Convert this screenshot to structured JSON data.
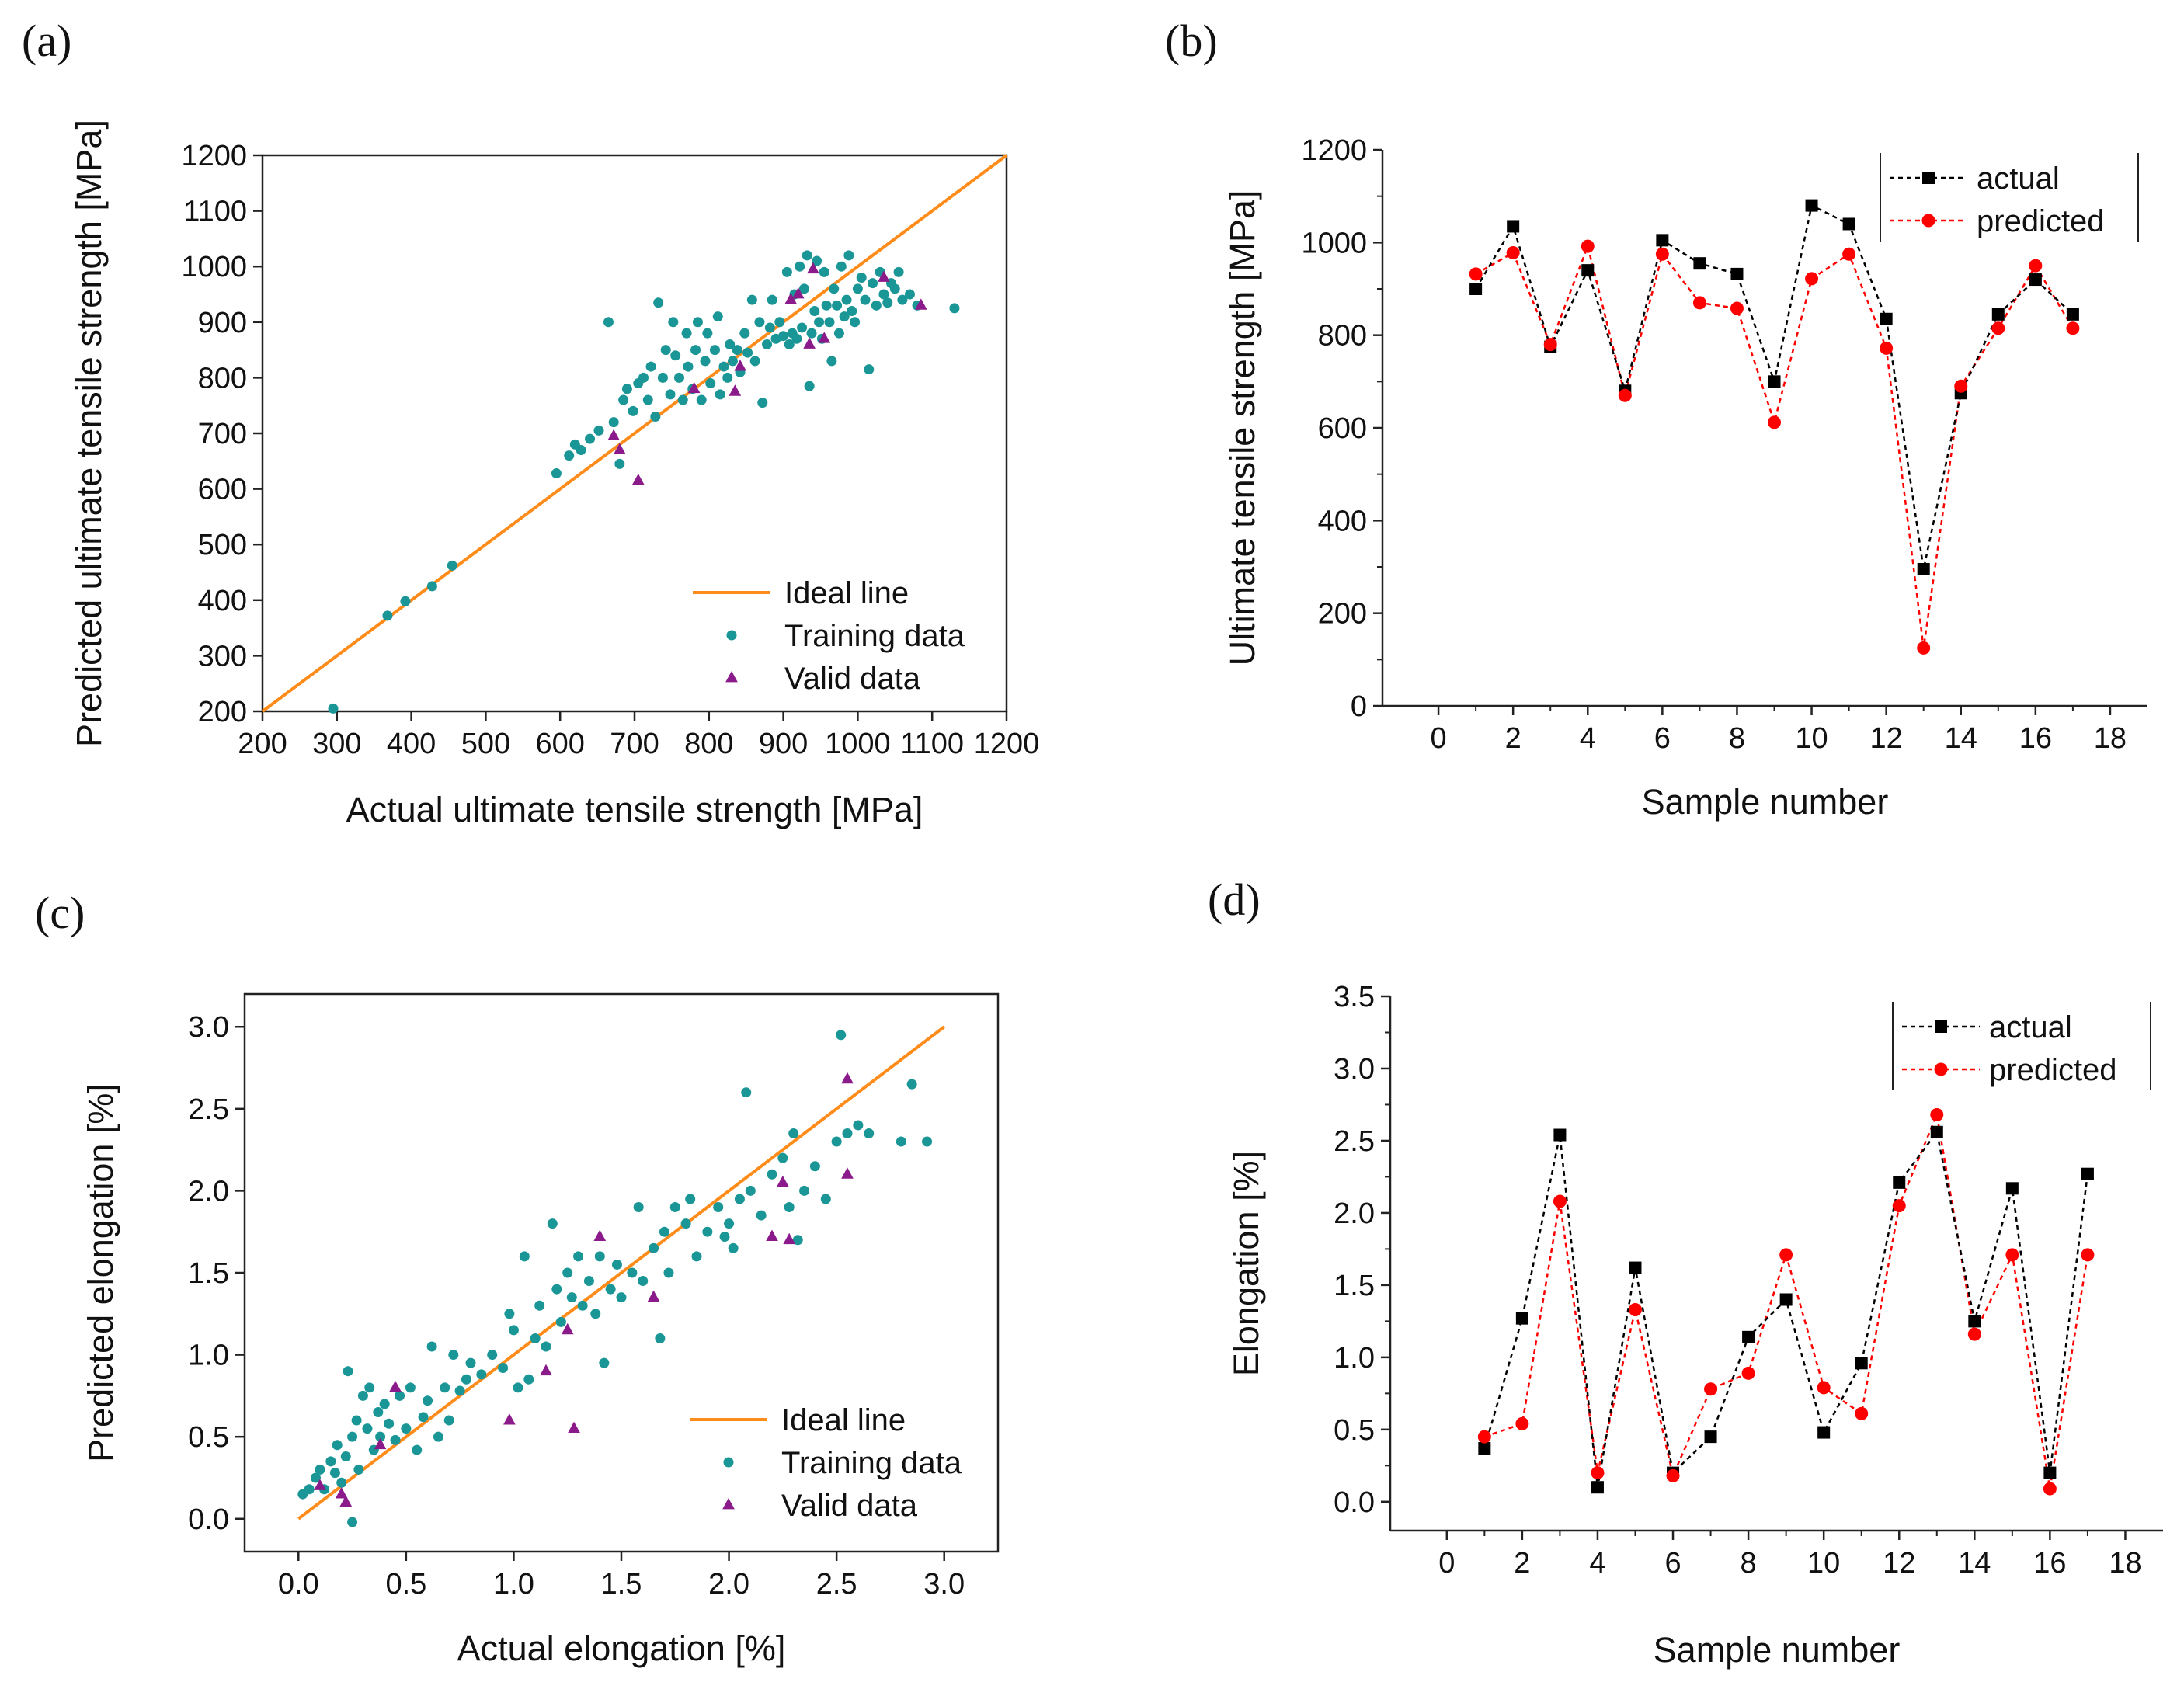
{
  "panels": {
    "a": "(a)",
    "b": "(b)",
    "c": "(c)",
    "d": "(d)"
  },
  "colors": {
    "ideal": "#ff8c1a",
    "training": "#1a9696",
    "valid": "#8b1a8b",
    "actual": "#000000",
    "predicted": "#ff0000"
  },
  "chart_data": [
    {
      "id": "a",
      "type": "scatter",
      "xlabel": "Actual ultimate tensile strength [MPa]",
      "ylabel": "Predicted ultimate tensile strength [MPa]",
      "xlim": [
        200,
        1200
      ],
      "ylim": [
        200,
        1200
      ],
      "xticks": [
        200,
        300,
        400,
        500,
        600,
        700,
        800,
        900,
        1000,
        1100,
        1200
      ],
      "yticks": [
        200,
        300,
        400,
        500,
        600,
        700,
        800,
        900,
        1000,
        1100,
        1200
      ],
      "legend": [
        "Ideal line",
        "Training data",
        "Valid data"
      ],
      "ideal_line": [
        [
          200,
          200
        ],
        [
          1200,
          1200
        ]
      ],
      "training": [
        [
          295,
          205
        ],
        [
          368,
          372
        ],
        [
          392,
          398
        ],
        [
          428,
          425
        ],
        [
          455,
          462
        ],
        [
          595,
          628
        ],
        [
          612,
          660
        ],
        [
          620,
          680
        ],
        [
          628,
          670
        ],
        [
          640,
          690
        ],
        [
          652,
          705
        ],
        [
          665,
          900
        ],
        [
          672,
          720
        ],
        [
          680,
          645
        ],
        [
          685,
          760
        ],
        [
          690,
          780
        ],
        [
          698,
          740
        ],
        [
          705,
          790
        ],
        [
          712,
          800
        ],
        [
          718,
          760
        ],
        [
          722,
          820
        ],
        [
          728,
          730
        ],
        [
          732,
          935
        ],
        [
          738,
          800
        ],
        [
          742,
          850
        ],
        [
          748,
          770
        ],
        [
          752,
          900
        ],
        [
          755,
          840
        ],
        [
          760,
          800
        ],
        [
          765,
          760
        ],
        [
          770,
          880
        ],
        [
          772,
          820
        ],
        [
          778,
          780
        ],
        [
          782,
          850
        ],
        [
          785,
          900
        ],
        [
          790,
          760
        ],
        [
          795,
          830
        ],
        [
          798,
          880
        ],
        [
          802,
          790
        ],
        [
          808,
          850
        ],
        [
          812,
          910
        ],
        [
          815,
          770
        ],
        [
          820,
          820
        ],
        [
          825,
          800
        ],
        [
          828,
          860
        ],
        [
          832,
          830
        ],
        [
          838,
          850
        ],
        [
          842,
          810
        ],
        [
          848,
          880
        ],
        [
          852,
          845
        ],
        [
          858,
          940
        ],
        [
          862,
          830
        ],
        [
          868,
          900
        ],
        [
          872,
          755
        ],
        [
          878,
          860
        ],
        [
          882,
          890
        ],
        [
          885,
          940
        ],
        [
          890,
          870
        ],
        [
          895,
          900
        ],
        [
          900,
          875
        ],
        [
          905,
          990
        ],
        [
          908,
          860
        ],
        [
          912,
          880
        ],
        [
          915,
          950
        ],
        [
          918,
          870
        ],
        [
          922,
          1000
        ],
        [
          925,
          890
        ],
        [
          928,
          960
        ],
        [
          932,
          1020
        ],
        [
          935,
          785
        ],
        [
          938,
          880
        ],
        [
          942,
          920
        ],
        [
          945,
          1010
        ],
        [
          948,
          900
        ],
        [
          952,
          870
        ],
        [
          955,
          990
        ],
        [
          958,
          930
        ],
        [
          962,
          900
        ],
        [
          965,
          830
        ],
        [
          968,
          960
        ],
        [
          972,
          930
        ],
        [
          975,
          880
        ],
        [
          978,
          1000
        ],
        [
          982,
          910
        ],
        [
          985,
          940
        ],
        [
          988,
          1020
        ],
        [
          992,
          920
        ],
        [
          996,
          900
        ],
        [
          1000,
          960
        ],
        [
          1005,
          980
        ],
        [
          1010,
          940
        ],
        [
          1015,
          815
        ],
        [
          1020,
          970
        ],
        [
          1025,
          930
        ],
        [
          1030,
          990
        ],
        [
          1035,
          950
        ],
        [
          1040,
          935
        ],
        [
          1045,
          970
        ],
        [
          1050,
          960
        ],
        [
          1055,
          990
        ],
        [
          1060,
          940
        ],
        [
          1070,
          950
        ],
        [
          1080,
          930
        ],
        [
          1130,
          925
        ]
      ],
      "valid": [
        [
          672,
          695
        ],
        [
          680,
          670
        ],
        [
          705,
          615
        ],
        [
          780,
          780
        ],
        [
          835,
          775
        ],
        [
          842,
          820
        ],
        [
          910,
          940
        ],
        [
          920,
          950
        ],
        [
          935,
          860
        ],
        [
          940,
          995
        ],
        [
          955,
          870
        ],
        [
          1035,
          980
        ],
        [
          1085,
          930
        ]
      ]
    },
    {
      "id": "b",
      "type": "line",
      "xlabel": "Sample number",
      "ylabel": "Ultimate tensile strength [MPa]",
      "xlim": [
        -1.5,
        19
      ],
      "ylim": [
        0,
        1200
      ],
      "xticks": [
        0,
        2,
        4,
        6,
        8,
        10,
        12,
        14,
        16,
        18
      ],
      "yticks": [
        0,
        200,
        400,
        600,
        800,
        1000,
        1200
      ],
      "x": [
        1,
        2,
        3,
        4,
        5,
        6,
        7,
        8,
        9,
        10,
        11,
        12,
        13,
        14,
        15,
        16,
        17
      ],
      "series": [
        {
          "name": "actual",
          "values": [
            900,
            1035,
            775,
            940,
            680,
            1005,
            955,
            932,
            700,
            1080,
            1040,
            835,
            295,
            675,
            845,
            920,
            845
          ]
        },
        {
          "name": "predicted",
          "values": [
            932,
            978,
            780,
            992,
            670,
            975,
            870,
            858,
            612,
            922,
            975,
            772,
            125,
            690,
            815,
            950,
            815
          ]
        }
      ]
    },
    {
      "id": "c",
      "type": "scatter",
      "xlabel": "Actual elongation [%]",
      "ylabel": "Predicted elongation [%]",
      "xlim": [
        -0.25,
        3.25
      ],
      "ylim": [
        -0.2,
        3.2
      ],
      "xticks": [
        0.0,
        0.5,
        1.0,
        1.5,
        2.0,
        2.5,
        3.0
      ],
      "yticks": [
        0.0,
        0.5,
        1.0,
        1.5,
        2.0,
        2.5,
        3.0
      ],
      "legend": [
        "Ideal line",
        "Training data",
        "Valid data"
      ],
      "ideal_line": [
        [
          0,
          0
        ],
        [
          3,
          3
        ]
      ],
      "training": [
        [
          0.02,
          0.15
        ],
        [
          0.05,
          0.18
        ],
        [
          0.08,
          0.25
        ],
        [
          0.1,
          0.3
        ],
        [
          0.12,
          0.18
        ],
        [
          0.15,
          0.35
        ],
        [
          0.17,
          0.28
        ],
        [
          0.18,
          0.45
        ],
        [
          0.2,
          0.22
        ],
        [
          0.22,
          0.38
        ],
        [
          0.23,
          0.9
        ],
        [
          0.25,
          -0.02
        ],
        [
          0.25,
          0.5
        ],
        [
          0.27,
          0.6
        ],
        [
          0.28,
          0.3
        ],
        [
          0.3,
          0.75
        ],
        [
          0.32,
          0.55
        ],
        [
          0.33,
          0.8
        ],
        [
          0.35,
          0.42
        ],
        [
          0.37,
          0.65
        ],
        [
          0.38,
          0.5
        ],
        [
          0.4,
          0.7
        ],
        [
          0.42,
          0.58
        ],
        [
          0.45,
          0.48
        ],
        [
          0.47,
          0.75
        ],
        [
          0.5,
          0.55
        ],
        [
          0.52,
          0.8
        ],
        [
          0.55,
          0.42
        ],
        [
          0.58,
          0.62
        ],
        [
          0.6,
          0.72
        ],
        [
          0.62,
          1.05
        ],
        [
          0.65,
          0.5
        ],
        [
          0.68,
          0.8
        ],
        [
          0.7,
          0.6
        ],
        [
          0.72,
          1.0
        ],
        [
          0.75,
          0.78
        ],
        [
          0.78,
          0.85
        ],
        [
          0.8,
          0.95
        ],
        [
          0.85,
          0.88
        ],
        [
          0.9,
          1.0
        ],
        [
          0.95,
          0.92
        ],
        [
          0.98,
          1.25
        ],
        [
          1.0,
          1.15
        ],
        [
          1.02,
          0.8
        ],
        [
          1.05,
          1.6
        ],
        [
          1.07,
          0.85
        ],
        [
          1.1,
          1.1
        ],
        [
          1.12,
          1.3
        ],
        [
          1.15,
          1.05
        ],
        [
          1.18,
          1.8
        ],
        [
          1.2,
          1.4
        ],
        [
          1.22,
          1.2
        ],
        [
          1.25,
          1.5
        ],
        [
          1.27,
          1.35
        ],
        [
          1.3,
          1.6
        ],
        [
          1.32,
          1.3
        ],
        [
          1.35,
          1.45
        ],
        [
          1.38,
          1.25
        ],
        [
          1.4,
          1.6
        ],
        [
          1.42,
          0.95
        ],
        [
          1.45,
          1.4
        ],
        [
          1.48,
          1.55
        ],
        [
          1.5,
          1.35
        ],
        [
          1.55,
          1.5
        ],
        [
          1.58,
          1.9
        ],
        [
          1.6,
          1.45
        ],
        [
          1.65,
          1.65
        ],
        [
          1.68,
          1.1
        ],
        [
          1.7,
          1.75
        ],
        [
          1.72,
          1.5
        ],
        [
          1.75,
          1.9
        ],
        [
          1.8,
          1.8
        ],
        [
          1.82,
          1.95
        ],
        [
          1.85,
          1.6
        ],
        [
          1.9,
          1.75
        ],
        [
          1.95,
          1.9
        ],
        [
          1.98,
          1.72
        ],
        [
          2.0,
          1.8
        ],
        [
          2.02,
          1.65
        ],
        [
          2.05,
          1.95
        ],
        [
          2.08,
          2.6
        ],
        [
          2.1,
          2.0
        ],
        [
          2.15,
          1.85
        ],
        [
          2.2,
          2.1
        ],
        [
          2.25,
          2.2
        ],
        [
          2.28,
          1.9
        ],
        [
          2.3,
          2.35
        ],
        [
          2.32,
          1.7
        ],
        [
          2.35,
          2.0
        ],
        [
          2.4,
          2.15
        ],
        [
          2.45,
          1.95
        ],
        [
          2.5,
          2.3
        ],
        [
          2.52,
          2.95
        ],
        [
          2.55,
          2.35
        ],
        [
          2.6,
          2.4
        ],
        [
          2.65,
          2.35
        ],
        [
          2.8,
          2.3
        ],
        [
          2.85,
          2.65
        ],
        [
          2.92,
          2.3
        ]
      ],
      "valid": [
        [
          0.1,
          0.2
        ],
        [
          0.2,
          0.15
        ],
        [
          0.22,
          0.1
        ],
        [
          0.38,
          0.45
        ],
        [
          0.45,
          0.8
        ],
        [
          0.98,
          0.6
        ],
        [
          1.15,
          0.9
        ],
        [
          1.25,
          1.15
        ],
        [
          1.28,
          0.55
        ],
        [
          1.4,
          1.72
        ],
        [
          1.65,
          1.35
        ],
        [
          2.2,
          1.72
        ],
        [
          2.25,
          2.05
        ],
        [
          2.28,
          1.7
        ],
        [
          2.55,
          2.1
        ],
        [
          2.55,
          2.68
        ]
      ]
    },
    {
      "id": "d",
      "type": "line",
      "xlabel": "Sample number",
      "ylabel": "Elongation [%]",
      "xlim": [
        -1.5,
        19
      ],
      "ylim": [
        -0.2,
        3.5
      ],
      "xticks": [
        0,
        2,
        4,
        6,
        8,
        10,
        12,
        14,
        16,
        18
      ],
      "yticks": [
        0.0,
        0.5,
        1.0,
        1.5,
        2.0,
        2.5,
        3.0,
        3.5
      ],
      "x": [
        1,
        2,
        3,
        4,
        5,
        6,
        7,
        8,
        9,
        10,
        11,
        12,
        13,
        14,
        15,
        16,
        17
      ],
      "series": [
        {
          "name": "actual",
          "values": [
            0.37,
            1.27,
            2.54,
            0.1,
            1.62,
            0.2,
            0.45,
            1.14,
            1.4,
            0.48,
            0.96,
            2.21,
            2.56,
            1.25,
            2.17,
            0.2,
            2.27
          ]
        },
        {
          "name": "predicted",
          "values": [
            0.45,
            0.54,
            2.08,
            0.2,
            1.33,
            0.18,
            0.78,
            0.89,
            1.71,
            0.79,
            0.61,
            2.05,
            2.68,
            1.16,
            1.71,
            0.09,
            1.71
          ]
        }
      ]
    }
  ]
}
